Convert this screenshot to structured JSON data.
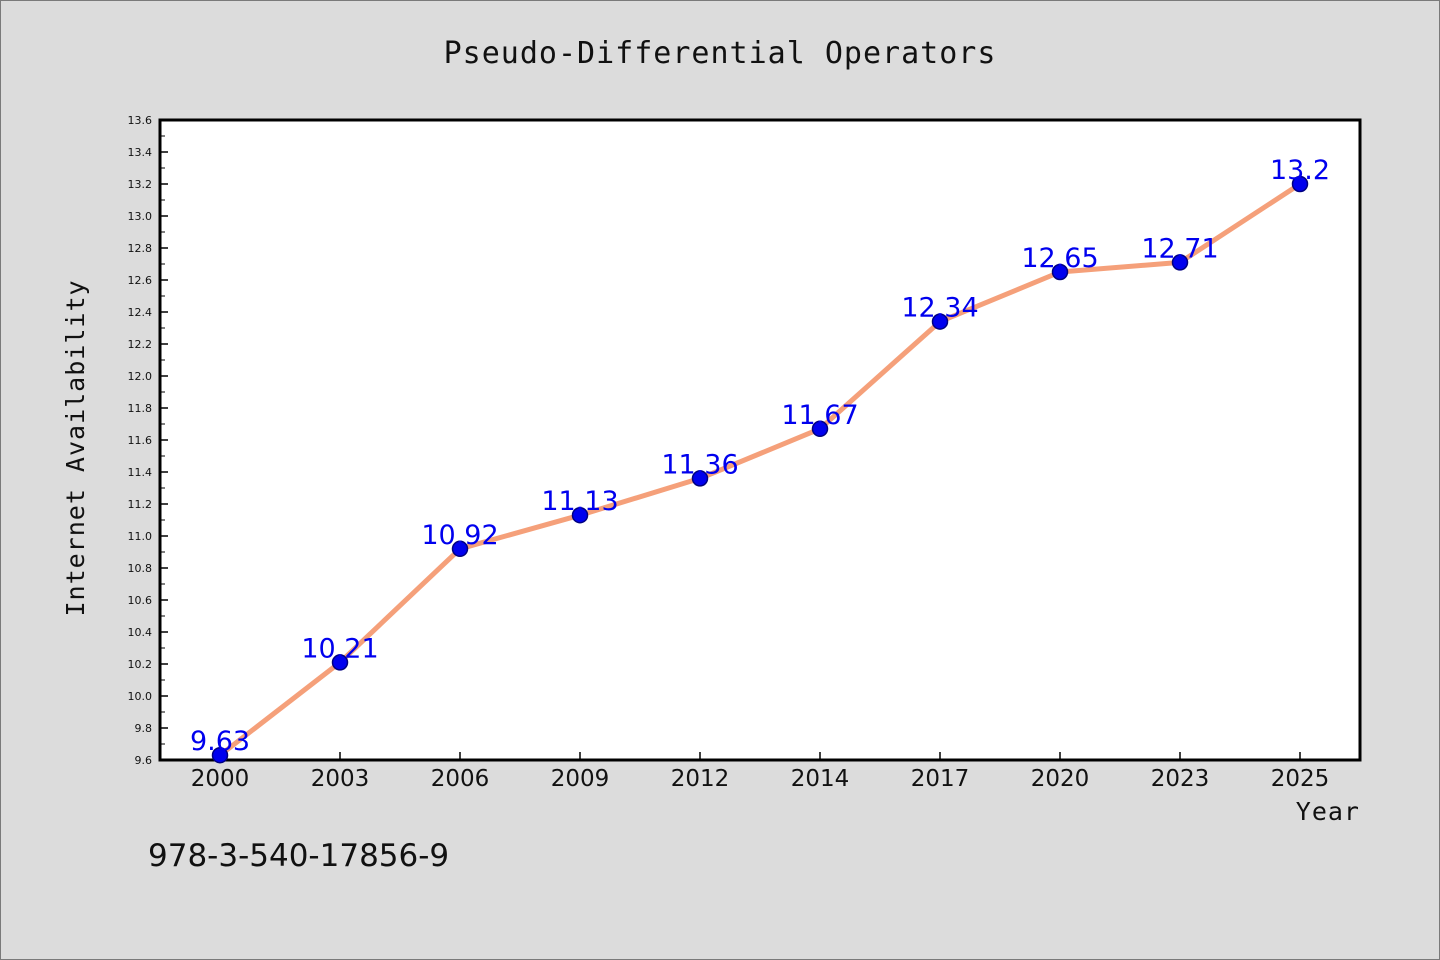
{
  "footnote": "978-3-540-17856-9",
  "colors": {
    "background": "#dcdcdc",
    "plot_background": "#ffffff",
    "line": "#f5a07a",
    "marker": "#0000ee",
    "marker_edge": "#000080",
    "data_label": "#0000ee"
  },
  "chart_data": {
    "type": "line",
    "title": "Pseudo-Differential Operators",
    "xlabel": "Year",
    "ylabel": "Internet Availability",
    "categories": [
      "2000",
      "2003",
      "2006",
      "2009",
      "2012",
      "2014",
      "2017",
      "2020",
      "2023",
      "2025"
    ],
    "series": [
      {
        "values": [
          9.63,
          10.21,
          10.92,
          11.13,
          11.36,
          11.67,
          12.34,
          12.65,
          12.71,
          13.2
        ],
        "data_labels": [
          "9.63",
          "10.21",
          "10.92",
          "11.13",
          "11.36",
          "11.67",
          "12.34",
          "12.65",
          "12.71",
          "13.2"
        ]
      }
    ],
    "ylim": [
      9.6,
      13.6
    ],
    "yticks": [
      "9.6",
      "9.8",
      "10.0",
      "10.2",
      "10.4",
      "10.6",
      "10.8",
      "11.0",
      "11.2",
      "11.4",
      "11.6",
      "11.8",
      "12.0",
      "12.2",
      "12.4",
      "12.6",
      "12.8",
      "13.0",
      "13.2",
      "13.4",
      "13.6"
    ],
    "grid": false,
    "legend": "none"
  }
}
